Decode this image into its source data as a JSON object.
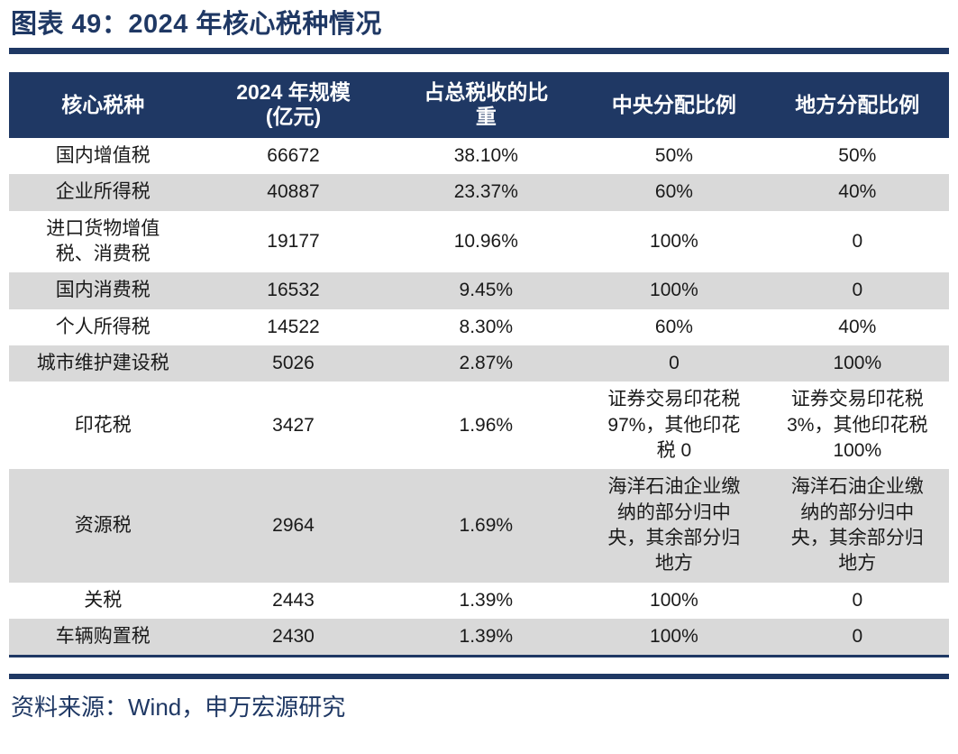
{
  "title": "图表 49：2024 年核心税种情况",
  "source": "资料来源：Wind，申万宏源研究",
  "colors": {
    "navy_accent": "#1F3864",
    "row_stripe": "#D9D9D9",
    "row_plain": "#FFFFFF",
    "header_text": "#FFFFFF",
    "body_text": "#1A1A1A"
  },
  "chart_data": {
    "type": "table",
    "title": "2024 年核心税种情况",
    "columns": [
      "核心税种",
      "2024 年规模\n(亿元)",
      "占总税收的比\n重",
      "中央分配比例",
      "地方分配比例"
    ],
    "rows": [
      [
        "国内增值税",
        "66672",
        "38.10%",
        "50%",
        "50%"
      ],
      [
        "企业所得税",
        "40887",
        "23.37%",
        "60%",
        "40%"
      ],
      [
        "进口货物增值税、消费税",
        "19177",
        "10.96%",
        "100%",
        "0"
      ],
      [
        "国内消费税",
        "16532",
        "9.45%",
        "100%",
        "0"
      ],
      [
        "个人所得税",
        "14522",
        "8.30%",
        "60%",
        "40%"
      ],
      [
        "城市维护建设税",
        "5026",
        "2.87%",
        "0",
        "100%"
      ],
      [
        "印花税",
        "3427",
        "1.96%",
        "证券交易印花税 97%，其他印花税 0",
        "证券交易印花税 3%，其他印花税 100%"
      ],
      [
        "资源税",
        "2964",
        "1.69%",
        "海洋石油企业缴纳的部分归中央，其余部分归地方",
        "海洋石油企业缴纳的部分归中央，其余部分归地方"
      ],
      [
        "关税",
        "2443",
        "1.39%",
        "100%",
        "0"
      ],
      [
        "车辆购置税",
        "2430",
        "1.39%",
        "100%",
        "0"
      ]
    ]
  }
}
